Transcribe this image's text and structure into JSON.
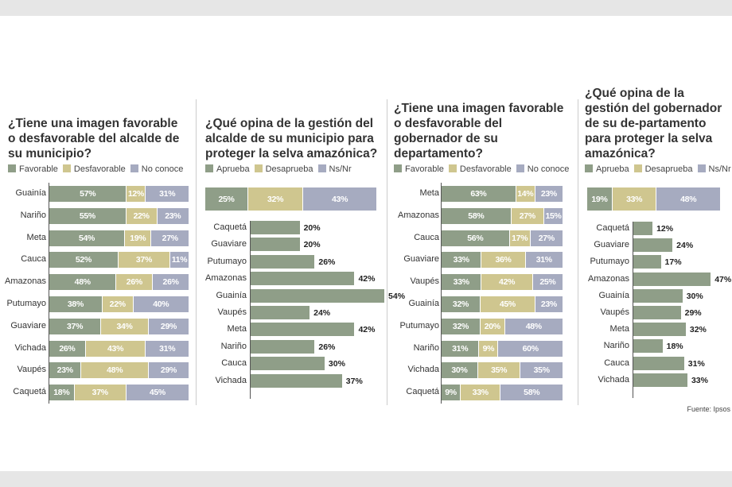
{
  "colors": {
    "favorable": "#8f9e88",
    "desfavorable": "#cfc68f",
    "no_conoce": "#a6abc0"
  },
  "source": "Fuente: Ipsos",
  "chart_data": [
    {
      "type": "bar",
      "stacked": true,
      "orientation": "horizontal",
      "title": "¿Tiene una imagen favorable o desfavorable del alcalde de su municipio?",
      "legend": [
        "Favorable",
        "Desfavorable",
        "No conoce"
      ],
      "categories": [
        "Guainía",
        "Nariño",
        "Meta",
        "Cauca",
        "Amazonas",
        "Putumayo",
        "Guaviare",
        "Vichada",
        "Vaupés",
        "Caquetá"
      ],
      "series": [
        {
          "name": "Favorable",
          "values": [
            57,
            55,
            54,
            52,
            48,
            38,
            37,
            26,
            23,
            18
          ]
        },
        {
          "name": "Desfavorable",
          "values": [
            12,
            22,
            19,
            37,
            26,
            22,
            34,
            43,
            48,
            37
          ]
        },
        {
          "name": "No conoce",
          "values": [
            31,
            23,
            27,
            11,
            26,
            40,
            29,
            31,
            29,
            45
          ]
        }
      ]
    },
    {
      "type": "bar",
      "orientation": "horizontal",
      "title": "¿Qué opina de la gestión del alcalde de su municipio para proteger la selva amazónica?",
      "legend": [
        "Aprueba",
        "Desaprueba",
        "Ns/Nr"
      ],
      "total": [
        25,
        32,
        43
      ],
      "categories": [
        "Caquetá",
        "Guaviare",
        "Putumayo",
        "Amazonas",
        "Guainía",
        "Vaupés",
        "Meta",
        "Nariño",
        "Cauca",
        "Vichada"
      ],
      "values": [
        20,
        20,
        26,
        42,
        54,
        24,
        42,
        26,
        30,
        37
      ]
    },
    {
      "type": "bar",
      "stacked": true,
      "orientation": "horizontal",
      "title": "¿Tiene una imagen favorable o desfavorable del gobernador de su departamento?",
      "legend": [
        "Favorable",
        "Desfavorable",
        "No conoce"
      ],
      "categories": [
        "Meta",
        "Amazonas",
        "Cauca",
        "Guaviare",
        "Vaupés",
        "Guainía",
        "Putumayo",
        "Nariño",
        "Vichada",
        "Caquetá"
      ],
      "series": [
        {
          "name": "Favorable",
          "values": [
            63,
            58,
            56,
            33,
            33,
            32,
            32,
            31,
            30,
            9
          ]
        },
        {
          "name": "Desfavorable",
          "values": [
            14,
            27,
            17,
            36,
            42,
            45,
            20,
            9,
            35,
            33
          ]
        },
        {
          "name": "No conoce",
          "values": [
            23,
            15,
            27,
            31,
            25,
            23,
            48,
            60,
            35,
            58
          ]
        }
      ]
    },
    {
      "type": "bar",
      "orientation": "horizontal",
      "title": "¿Qué opina de la gestión del gobernador de su de-partamento para proteger la selva amazónica?",
      "legend": [
        "Aprueba",
        "Desaprueba",
        "Ns/Nr"
      ],
      "total": [
        19,
        33,
        48
      ],
      "categories": [
        "Caquetá",
        "Guaviare",
        "Putumayo",
        "Amazonas",
        "Guainía",
        "Vaupés",
        "Meta",
        "Nariño",
        "Cauca",
        "Vichada"
      ],
      "values": [
        12,
        24,
        17,
        47,
        30,
        29,
        32,
        18,
        31,
        33
      ]
    }
  ]
}
